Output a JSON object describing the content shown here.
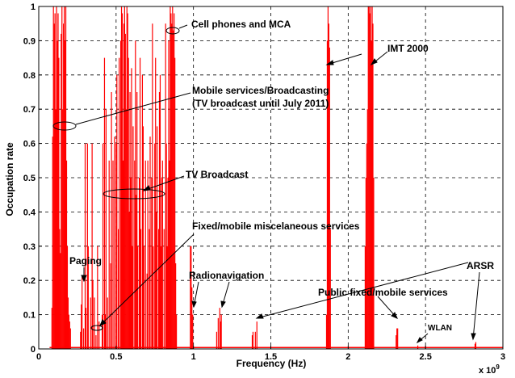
{
  "chart_data": {
    "type": "line",
    "title": "",
    "xlabel": "Frequency (Hz)",
    "ylabel": "Occupation rate",
    "x_multiplier_label": "x 10",
    "x_multiplier_exponent": "9",
    "xlim": [
      0,
      3
    ],
    "ylim": [
      0,
      1
    ],
    "grid": true,
    "x_ticks": [
      {
        "value": 0,
        "label": "0"
      },
      {
        "value": 0.5,
        "label": "0.5"
      },
      {
        "value": 1,
        "label": "1"
      },
      {
        "value": 1.5,
        "label": "1.5"
      },
      {
        "value": 2,
        "label": "2"
      },
      {
        "value": 2.5,
        "label": "2.5"
      },
      {
        "value": 3,
        "label": "3"
      }
    ],
    "y_ticks": [
      {
        "value": 0,
        "label": "0"
      },
      {
        "value": 0.1,
        "label": "0.1"
      },
      {
        "value": 0.2,
        "label": "0.2"
      },
      {
        "value": 0.3,
        "label": "0.3"
      },
      {
        "value": 0.4,
        "label": "0.4"
      },
      {
        "value": 0.5,
        "label": "0.5"
      },
      {
        "value": 0.6,
        "label": "0.6"
      },
      {
        "value": 0.7,
        "label": "0.7"
      },
      {
        "value": 0.8,
        "label": "0.8"
      },
      {
        "value": 0.9,
        "label": "0.9"
      },
      {
        "value": 1,
        "label": "1"
      }
    ],
    "series_color": "#ff0000",
    "baseline": 0.004,
    "peaks": [
      [
        0.085,
        0.12
      ],
      [
        0.09,
        0.62
      ],
      [
        0.095,
        1.0
      ],
      [
        0.1,
        0.95
      ],
      [
        0.105,
        0.98
      ],
      [
        0.11,
        0.7
      ],
      [
        0.115,
        1.0
      ],
      [
        0.12,
        0.9
      ],
      [
        0.125,
        0.98
      ],
      [
        0.13,
        0.85
      ],
      [
        0.135,
        0.35
      ],
      [
        0.14,
        0.28
      ],
      [
        0.145,
        0.92
      ],
      [
        0.15,
        1.0
      ],
      [
        0.155,
        0.7
      ],
      [
        0.16,
        0.95
      ],
      [
        0.165,
        1.0
      ],
      [
        0.17,
        0.9
      ],
      [
        0.175,
        1.0
      ],
      [
        0.18,
        0.55
      ],
      [
        0.185,
        0.3
      ],
      [
        0.19,
        0.15
      ],
      [
        0.195,
        0.1
      ],
      [
        0.2,
        0.08
      ],
      [
        0.205,
        0.06
      ],
      [
        0.27,
        0.05
      ],
      [
        0.275,
        0.13
      ],
      [
        0.28,
        0.21
      ],
      [
        0.29,
        0.06
      ],
      [
        0.3,
        0.6
      ],
      [
        0.305,
        0.12
      ],
      [
        0.315,
        0.6
      ],
      [
        0.32,
        0.3
      ],
      [
        0.335,
        0.15
      ],
      [
        0.345,
        0.6
      ],
      [
        0.35,
        0.2
      ],
      [
        0.36,
        0.15
      ],
      [
        0.37,
        0.04
      ],
      [
        0.38,
        0.3
      ],
      [
        0.39,
        0.08
      ],
      [
        0.41,
        0.1
      ],
      [
        0.415,
        0.6
      ],
      [
        0.425,
        0.85
      ],
      [
        0.43,
        0.1
      ],
      [
        0.435,
        0.7
      ],
      [
        0.445,
        0.15
      ],
      [
        0.455,
        0.55
      ],
      [
        0.465,
        0.25
      ],
      [
        0.47,
        0.75
      ],
      [
        0.48,
        0.55
      ],
      [
        0.49,
        0.62
      ],
      [
        0.5,
        0.6
      ],
      [
        0.505,
        0.8
      ],
      [
        0.515,
        0.35
      ],
      [
        0.52,
        0.85
      ],
      [
        0.53,
        0.9
      ],
      [
        0.535,
        1.0
      ],
      [
        0.54,
        0.98
      ],
      [
        0.545,
        0.55
      ],
      [
        0.55,
        0.95
      ],
      [
        0.555,
        1.0
      ],
      [
        0.56,
        0.92
      ],
      [
        0.565,
        0.7
      ],
      [
        0.57,
        1.0
      ],
      [
        0.575,
        0.98
      ],
      [
        0.58,
        0.85
      ],
      [
        0.585,
        0.4
      ],
      [
        0.59,
        0.75
      ],
      [
        0.595,
        0.5
      ],
      [
        0.6,
        0.82
      ],
      [
        0.605,
        0.3
      ],
      [
        0.61,
        0.65
      ],
      [
        0.62,
        0.55
      ],
      [
        0.625,
        0.9
      ],
      [
        0.63,
        0.45
      ],
      [
        0.635,
        0.75
      ],
      [
        0.64,
        0.3
      ],
      [
        0.65,
        0.5
      ],
      [
        0.655,
        0.85
      ],
      [
        0.66,
        0.35
      ],
      [
        0.67,
        0.8
      ],
      [
        0.675,
        0.65
      ],
      [
        0.68,
        0.3
      ],
      [
        0.69,
        0.55
      ],
      [
        0.7,
        0.22
      ],
      [
        0.705,
        0.55
      ],
      [
        0.715,
        0.35
      ],
      [
        0.72,
        0.62
      ],
      [
        0.73,
        0.5
      ],
      [
        0.735,
        0.95
      ],
      [
        0.74,
        0.3
      ],
      [
        0.75,
        0.6
      ],
      [
        0.755,
        0.85
      ],
      [
        0.76,
        0.4
      ],
      [
        0.765,
        0.65
      ],
      [
        0.775,
        0.35
      ],
      [
        0.78,
        0.75
      ],
      [
        0.785,
        0.8
      ],
      [
        0.79,
        0.3
      ],
      [
        0.795,
        0.5
      ],
      [
        0.8,
        0.55
      ],
      [
        0.81,
        0.35
      ],
      [
        0.82,
        0.95
      ],
      [
        0.825,
        0.6
      ],
      [
        0.83,
        0.3
      ],
      [
        0.835,
        0.5
      ],
      [
        0.84,
        0.9
      ],
      [
        0.845,
        0.55
      ],
      [
        0.85,
        1.0
      ],
      [
        0.855,
        0.98
      ],
      [
        0.86,
        0.95
      ],
      [
        0.865,
        1.0
      ],
      [
        0.87,
        0.93
      ],
      [
        0.875,
        0.98
      ],
      [
        0.88,
        0.85
      ],
      [
        0.885,
        0.25
      ],
      [
        0.89,
        0.1
      ],
      [
        0.98,
        0.3
      ],
      [
        0.985,
        0.3
      ],
      [
        0.99,
        0.18
      ],
      [
        0.995,
        0.1
      ],
      [
        1.15,
        0.05
      ],
      [
        1.16,
        0.09
      ],
      [
        1.17,
        0.12
      ],
      [
        1.175,
        0.08
      ],
      [
        1.18,
        0.1
      ],
      [
        1.38,
        0.04
      ],
      [
        1.385,
        0.05
      ],
      [
        1.4,
        0.05
      ],
      [
        1.41,
        0.08
      ],
      [
        1.86,
        0.1
      ],
      [
        1.865,
        0.9
      ],
      [
        1.87,
        1.0
      ],
      [
        1.875,
        0.95
      ],
      [
        1.88,
        0.88
      ],
      [
        1.885,
        0.35
      ],
      [
        2.11,
        0.3
      ],
      [
        2.115,
        0.5
      ],
      [
        2.12,
        0.6
      ],
      [
        2.125,
        0.7
      ],
      [
        2.13,
        1.0
      ],
      [
        2.135,
        1.0
      ],
      [
        2.14,
        0.98
      ],
      [
        2.145,
        1.0
      ],
      [
        2.15,
        0.9
      ],
      [
        2.155,
        1.0
      ],
      [
        2.16,
        0.95
      ],
      [
        2.165,
        0.5
      ],
      [
        2.31,
        0.04
      ],
      [
        2.315,
        0.06
      ],
      [
        2.32,
        0.06
      ],
      [
        2.45,
        0.01
      ],
      [
        2.5,
        0.008
      ],
      [
        2.82,
        0.015
      ],
      [
        2.825,
        0.02
      ]
    ]
  },
  "annotations": [
    {
      "text": "Cell phones and MCA"
    },
    {
      "text": "IMT 2000"
    },
    {
      "text": "Mobile services/Broadcasting"
    },
    {
      "text": "(TV broadcast until July 2011)"
    },
    {
      "text": "TV Broadcast"
    },
    {
      "text": "Fixed/mobile miscelaneous services"
    },
    {
      "text": "Paging"
    },
    {
      "text": "Radionavigation"
    },
    {
      "text": "ARSR"
    },
    {
      "text": "Public fixed/mobile services"
    },
    {
      "text": "WLAN"
    }
  ]
}
